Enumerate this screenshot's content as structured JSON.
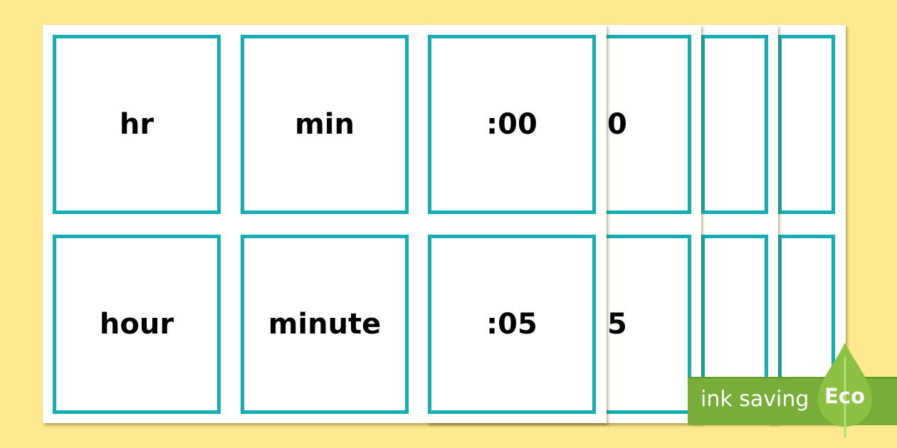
{
  "front_sheet": {
    "cards": [
      {
        "word": "hr"
      },
      {
        "word": "min"
      },
      {
        "word": ":00"
      },
      {
        "word": "hour"
      },
      {
        "word": "minute"
      },
      {
        "word": ":05"
      }
    ]
  },
  "back_sheet": {
    "cards": [
      {
        "word": "30"
      },
      {
        "word": "35"
      }
    ]
  },
  "eco_badge": {
    "text": "ink saving",
    "label": "Eco",
    "color": "#78ad3a"
  },
  "colors": {
    "background": "#fee990",
    "card_border": "#14aeb3"
  }
}
